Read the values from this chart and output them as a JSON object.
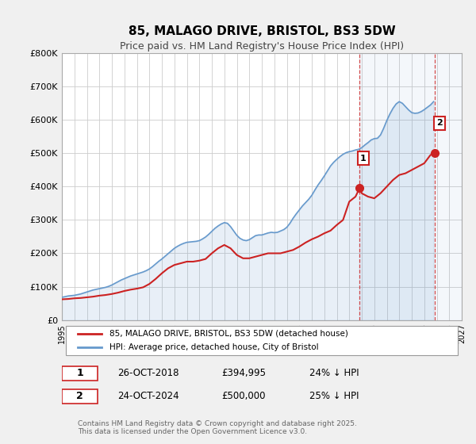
{
  "title": "85, MALAGO DRIVE, BRISTOL, BS3 5DW",
  "subtitle": "Price paid vs. HM Land Registry's House Price Index (HPI)",
  "bg_color": "#f0f0f0",
  "plot_bg_color": "#ffffff",
  "grid_color": "#cccccc",
  "hpi_color": "#6699cc",
  "price_color": "#cc2222",
  "marker_color": "#cc2222",
  "marker1_x": 2018.82,
  "marker1_y": 394995,
  "marker2_x": 2024.82,
  "marker2_y": 500000,
  "vline1_x": 2018.82,
  "vline2_x": 2024.82,
  "vline_color": "#cc2222",
  "xmin": 1995,
  "xmax": 2027,
  "ymin": 0,
  "ymax": 800000,
  "yticks": [
    0,
    100000,
    200000,
    300000,
    400000,
    500000,
    600000,
    700000,
    800000
  ],
  "ytick_labels": [
    "£0",
    "£100K",
    "£200K",
    "£300K",
    "£400K",
    "£500K",
    "£600K",
    "£700K",
    "£800K"
  ],
  "xticks": [
    1995,
    1996,
    1997,
    1998,
    1999,
    2000,
    2001,
    2002,
    2003,
    2004,
    2005,
    2006,
    2007,
    2008,
    2009,
    2010,
    2011,
    2012,
    2013,
    2014,
    2015,
    2016,
    2017,
    2018,
    2019,
    2020,
    2021,
    2022,
    2023,
    2024,
    2025,
    2026,
    2027
  ],
  "legend_label_price": "85, MALAGO DRIVE, BRISTOL, BS3 5DW (detached house)",
  "legend_label_hpi": "HPI: Average price, detached house, City of Bristol",
  "annotation1_label": "1",
  "annotation2_label": "2",
  "table_row1": [
    "1",
    "26-OCT-2018",
    "£394,995",
    "24% ↓ HPI"
  ],
  "table_row2": [
    "2",
    "24-OCT-2024",
    "£500,000",
    "25% ↓ HPI"
  ],
  "copyright_text": "Contains HM Land Registry data © Crown copyright and database right 2025.\nThis data is licensed under the Open Government Licence v3.0.",
  "hpi_x": [
    1995.0,
    1995.25,
    1995.5,
    1995.75,
    1996.0,
    1996.25,
    1996.5,
    1996.75,
    1997.0,
    1997.25,
    1997.5,
    1997.75,
    1998.0,
    1998.25,
    1998.5,
    1998.75,
    1999.0,
    1999.25,
    1999.5,
    1999.75,
    2000.0,
    2000.25,
    2000.5,
    2000.75,
    2001.0,
    2001.25,
    2001.5,
    2001.75,
    2002.0,
    2002.25,
    2002.5,
    2002.75,
    2003.0,
    2003.25,
    2003.5,
    2003.75,
    2004.0,
    2004.25,
    2004.5,
    2004.75,
    2005.0,
    2005.25,
    2005.5,
    2005.75,
    2006.0,
    2006.25,
    2006.5,
    2006.75,
    2007.0,
    2007.25,
    2007.5,
    2007.75,
    2008.0,
    2008.25,
    2008.5,
    2008.75,
    2009.0,
    2009.25,
    2009.5,
    2009.75,
    2010.0,
    2010.25,
    2010.5,
    2010.75,
    2011.0,
    2011.25,
    2011.5,
    2011.75,
    2012.0,
    2012.25,
    2012.5,
    2012.75,
    2013.0,
    2013.25,
    2013.5,
    2013.75,
    2014.0,
    2014.25,
    2014.5,
    2014.75,
    2015.0,
    2015.25,
    2015.5,
    2015.75,
    2016.0,
    2016.25,
    2016.5,
    2016.75,
    2017.0,
    2017.25,
    2017.5,
    2017.75,
    2018.0,
    2018.25,
    2018.5,
    2018.75,
    2019.0,
    2019.25,
    2019.5,
    2019.75,
    2020.0,
    2020.25,
    2020.5,
    2020.75,
    2021.0,
    2021.25,
    2021.5,
    2021.75,
    2022.0,
    2022.25,
    2022.5,
    2022.75,
    2023.0,
    2023.25,
    2023.5,
    2023.75,
    2024.0,
    2024.25,
    2024.5,
    2024.75
  ],
  "hpi_y": [
    68000,
    70000,
    72000,
    73000,
    74000,
    76000,
    78000,
    81000,
    84000,
    87000,
    90000,
    92000,
    94000,
    96000,
    98000,
    101000,
    105000,
    110000,
    115000,
    120000,
    124000,
    128000,
    132000,
    135000,
    138000,
    141000,
    144000,
    148000,
    153000,
    160000,
    168000,
    176000,
    183000,
    191000,
    199000,
    207000,
    215000,
    221000,
    226000,
    230000,
    233000,
    234000,
    235000,
    236000,
    238000,
    243000,
    249000,
    257000,
    266000,
    275000,
    282000,
    288000,
    292000,
    290000,
    280000,
    267000,
    254000,
    245000,
    240000,
    238000,
    241000,
    247000,
    253000,
    255000,
    255000,
    258000,
    261000,
    263000,
    262000,
    263000,
    267000,
    271000,
    278000,
    290000,
    305000,
    318000,
    330000,
    342000,
    352000,
    362000,
    374000,
    390000,
    405000,
    418000,
    432000,
    447000,
    462000,
    473000,
    482000,
    490000,
    497000,
    502000,
    505000,
    507000,
    510000,
    512000,
    517000,
    525000,
    532000,
    540000,
    544000,
    545000,
    555000,
    575000,
    598000,
    618000,
    635000,
    648000,
    655000,
    650000,
    640000,
    630000,
    622000,
    620000,
    621000,
    625000,
    631000,
    638000,
    645000,
    655000
  ],
  "price_x": [
    1995.0,
    1995.5,
    1996.0,
    1996.5,
    1997.0,
    1997.5,
    1998.0,
    1998.5,
    1999.0,
    1999.5,
    2000.0,
    2000.5,
    2001.0,
    2001.5,
    2002.0,
    2002.5,
    2003.0,
    2003.5,
    2004.0,
    2004.5,
    2005.0,
    2005.5,
    2006.0,
    2006.5,
    2007.0,
    2007.5,
    2008.0,
    2008.5,
    2009.0,
    2009.5,
    2010.0,
    2010.5,
    2011.0,
    2011.5,
    2012.0,
    2012.5,
    2013.0,
    2013.5,
    2014.0,
    2014.5,
    2015.0,
    2015.5,
    2016.0,
    2016.5,
    2017.0,
    2017.5,
    2018.0,
    2018.5,
    2018.82,
    2019.0,
    2019.5,
    2020.0,
    2020.5,
    2021.0,
    2021.5,
    2022.0,
    2022.5,
    2023.0,
    2023.5,
    2024.0,
    2024.5,
    2024.82
  ],
  "price_y": [
    62000,
    63000,
    65000,
    66000,
    68000,
    70000,
    73000,
    75000,
    78000,
    82000,
    87000,
    91000,
    94000,
    98000,
    108000,
    123000,
    140000,
    155000,
    165000,
    170000,
    175000,
    175000,
    178000,
    183000,
    200000,
    215000,
    225000,
    215000,
    195000,
    185000,
    185000,
    190000,
    195000,
    200000,
    200000,
    200000,
    205000,
    210000,
    220000,
    232000,
    242000,
    250000,
    260000,
    268000,
    285000,
    300000,
    355000,
    370000,
    394995,
    380000,
    370000,
    365000,
    380000,
    400000,
    420000,
    435000,
    440000,
    450000,
    460000,
    470000,
    495000,
    500000
  ]
}
